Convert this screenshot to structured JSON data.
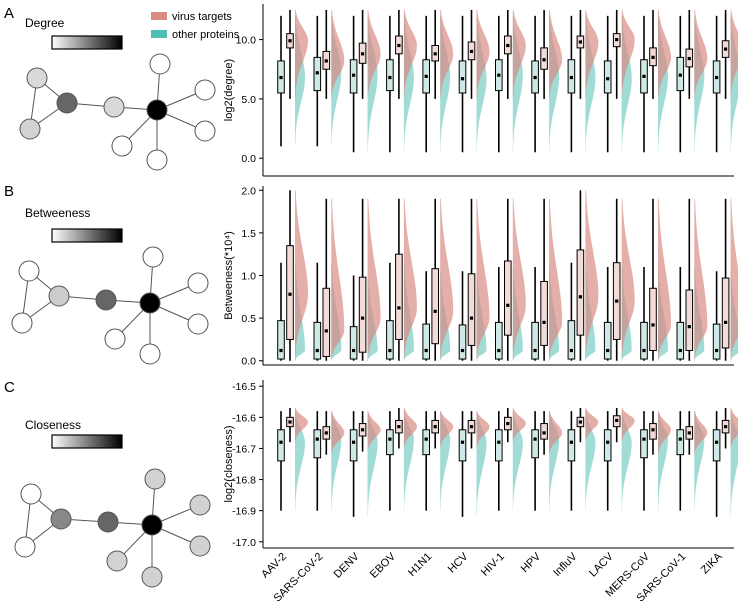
{
  "legend": {
    "items": [
      {
        "label": "virus targets",
        "color": "#d98b84"
      },
      {
        "label": "other proteins",
        "color": "#52bdb3"
      }
    ]
  },
  "panels": [
    {
      "letter": "A",
      "title": "Degree"
    },
    {
      "letter": "B",
      "title": "Betweeness"
    },
    {
      "letter": "C",
      "title": "Closeness"
    }
  ],
  "colors": {
    "virus": "#d98b84",
    "other": "#52bdb3",
    "box_virus": "#f3dcd8",
    "box_other": "#cfe9e6"
  },
  "chart_data": [
    {
      "type": "boxplot-violin",
      "title": "Degree",
      "ylabel": "log2(degree)",
      "ylim": [
        -1.5,
        13.0
      ],
      "yticks": [
        0.0,
        5.0,
        10.0
      ],
      "ytick_labels": [
        "0.0",
        "5.0",
        "10.0"
      ],
      "categories": [
        "AAV-2",
        "SARS-CoV-2",
        "DENV",
        "EBOV",
        "H1N1",
        "HCV",
        "HIV-1",
        "HPV",
        "InfluV",
        "LACV",
        "MERS-CoV",
        "SARS-CoV-1",
        "ZIKA"
      ],
      "series": [
        {
          "name": "other proteins",
          "stats": [
            {
              "min": 1.0,
              "q1": 5.5,
              "median": 6.8,
              "q3": 8.2,
              "max": 12.0
            },
            {
              "min": 1.0,
              "q1": 5.7,
              "median": 7.2,
              "q3": 8.5,
              "max": 12.0
            },
            {
              "min": 0.5,
              "q1": 5.5,
              "median": 7.0,
              "q3": 8.3,
              "max": 12.0
            },
            {
              "min": 0.5,
              "q1": 5.7,
              "median": 6.8,
              "q3": 8.3,
              "max": 12.0
            },
            {
              "min": 0.5,
              "q1": 5.5,
              "median": 6.9,
              "q3": 8.3,
              "max": 12.0
            },
            {
              "min": 0.5,
              "q1": 5.5,
              "median": 6.7,
              "q3": 8.2,
              "max": 12.0
            },
            {
              "min": 0.5,
              "q1": 5.7,
              "median": 7.0,
              "q3": 8.3,
              "max": 12.0
            },
            {
              "min": 0.5,
              "q1": 5.5,
              "median": 6.8,
              "q3": 8.2,
              "max": 12.0
            },
            {
              "min": 0.5,
              "q1": 5.5,
              "median": 6.8,
              "q3": 8.3,
              "max": 12.0
            },
            {
              "min": 0.5,
              "q1": 5.5,
              "median": 6.7,
              "q3": 8.2,
              "max": 12.0
            },
            {
              "min": 0.5,
              "q1": 5.5,
              "median": 6.9,
              "q3": 8.3,
              "max": 12.0
            },
            {
              "min": 0.5,
              "q1": 5.7,
              "median": 7.0,
              "q3": 8.5,
              "max": 12.0
            },
            {
              "min": 0.5,
              "q1": 5.5,
              "median": 6.8,
              "q3": 8.2,
              "max": 12.0
            }
          ]
        },
        {
          "name": "virus targets",
          "stats": [
            {
              "min": 5.0,
              "q1": 9.3,
              "median": 9.9,
              "q3": 10.5,
              "max": 12.5
            },
            {
              "min": 5.0,
              "q1": 7.5,
              "median": 8.2,
              "q3": 9.0,
              "max": 12.5
            },
            {
              "min": 5.0,
              "q1": 8.0,
              "median": 8.8,
              "q3": 9.7,
              "max": 12.5
            },
            {
              "min": 5.0,
              "q1": 8.8,
              "median": 9.5,
              "q3": 10.3,
              "max": 12.5
            },
            {
              "min": 5.0,
              "q1": 8.2,
              "median": 8.8,
              "q3": 9.5,
              "max": 12.5
            },
            {
              "min": 5.0,
              "q1": 8.3,
              "median": 9.0,
              "q3": 9.8,
              "max": 12.5
            },
            {
              "min": 5.0,
              "q1": 8.8,
              "median": 9.5,
              "q3": 10.3,
              "max": 12.5
            },
            {
              "min": 5.0,
              "q1": 7.5,
              "median": 8.3,
              "q3": 9.3,
              "max": 12.5
            },
            {
              "min": 5.0,
              "q1": 9.3,
              "median": 9.8,
              "q3": 10.3,
              "max": 12.5
            },
            {
              "min": 5.0,
              "q1": 9.4,
              "median": 10.0,
              "q3": 10.5,
              "max": 12.5
            },
            {
              "min": 5.0,
              "q1": 7.8,
              "median": 8.5,
              "q3": 9.3,
              "max": 12.5
            },
            {
              "min": 5.0,
              "q1": 7.7,
              "median": 8.4,
              "q3": 9.2,
              "max": 12.5
            },
            {
              "min": 5.0,
              "q1": 8.5,
              "median": 9.2,
              "q3": 9.9,
              "max": 12.5
            }
          ]
        }
      ]
    },
    {
      "type": "boxplot-violin",
      "title": "Betweeness",
      "ylabel": "Betweeness(*10⁴)",
      "ylim": [
        -0.05,
        2.05
      ],
      "yticks": [
        0.0,
        0.5,
        1.0,
        1.5,
        2.0
      ],
      "ytick_labels": [
        "0.0",
        "0.5",
        "1.0",
        "1.5",
        "2.0"
      ],
      "categories": [
        "AAV-2",
        "SARS-CoV-2",
        "DENV",
        "EBOV",
        "H1N1",
        "HCV",
        "HIV-1",
        "HPV",
        "InfluV",
        "LACV",
        "MERS-CoV",
        "SARS-CoV-1",
        "ZIKA"
      ],
      "series": [
        {
          "name": "other proteins",
          "stats": [
            {
              "min": 0.0,
              "q1": 0.02,
              "median": 0.12,
              "q3": 0.47,
              "max": 1.15
            },
            {
              "min": 0.0,
              "q1": 0.02,
              "median": 0.12,
              "q3": 0.45,
              "max": 1.15
            },
            {
              "min": 0.0,
              "q1": 0.02,
              "median": 0.12,
              "q3": 0.4,
              "max": 1.0
            },
            {
              "min": 0.0,
              "q1": 0.02,
              "median": 0.12,
              "q3": 0.47,
              "max": 1.15
            },
            {
              "min": 0.0,
              "q1": 0.02,
              "median": 0.12,
              "q3": 0.43,
              "max": 1.05
            },
            {
              "min": 0.0,
              "q1": 0.02,
              "median": 0.12,
              "q3": 0.42,
              "max": 1.05
            },
            {
              "min": 0.0,
              "q1": 0.02,
              "median": 0.12,
              "q3": 0.45,
              "max": 1.1
            },
            {
              "min": 0.0,
              "q1": 0.02,
              "median": 0.12,
              "q3": 0.45,
              "max": 1.1
            },
            {
              "min": 0.0,
              "q1": 0.02,
              "median": 0.12,
              "q3": 0.47,
              "max": 1.15
            },
            {
              "min": 0.0,
              "q1": 0.02,
              "median": 0.12,
              "q3": 0.45,
              "max": 1.1
            },
            {
              "min": 0.0,
              "q1": 0.02,
              "median": 0.12,
              "q3": 0.45,
              "max": 1.1
            },
            {
              "min": 0.0,
              "q1": 0.02,
              "median": 0.12,
              "q3": 0.45,
              "max": 1.1
            },
            {
              "min": 0.0,
              "q1": 0.02,
              "median": 0.12,
              "q3": 0.43,
              "max": 1.05
            }
          ]
        },
        {
          "name": "virus targets",
          "stats": [
            {
              "min": 0.0,
              "q1": 0.25,
              "median": 0.78,
              "q3": 1.35,
              "max": 2.0
            },
            {
              "min": 0.0,
              "q1": 0.05,
              "median": 0.35,
              "q3": 0.85,
              "max": 1.9
            },
            {
              "min": 0.0,
              "q1": 0.1,
              "median": 0.5,
              "q3": 0.98,
              "max": 1.9
            },
            {
              "min": 0.0,
              "q1": 0.25,
              "median": 0.62,
              "q3": 1.25,
              "max": 1.9
            },
            {
              "min": 0.0,
              "q1": 0.2,
              "median": 0.58,
              "q3": 1.08,
              "max": 1.9
            },
            {
              "min": 0.0,
              "q1": 0.18,
              "median": 0.5,
              "q3": 1.02,
              "max": 1.9
            },
            {
              "min": 0.0,
              "q1": 0.3,
              "median": 0.65,
              "q3": 1.17,
              "max": 1.9
            },
            {
              "min": 0.0,
              "q1": 0.18,
              "median": 0.45,
              "q3": 0.93,
              "max": 1.9
            },
            {
              "min": 0.0,
              "q1": 0.3,
              "median": 0.75,
              "q3": 1.3,
              "max": 2.0
            },
            {
              "min": 0.0,
              "q1": 0.25,
              "median": 0.7,
              "q3": 1.15,
              "max": 1.9
            },
            {
              "min": 0.0,
              "q1": 0.12,
              "median": 0.42,
              "q3": 0.85,
              "max": 1.9
            },
            {
              "min": 0.0,
              "q1": 0.12,
              "median": 0.4,
              "q3": 0.83,
              "max": 1.9
            },
            {
              "min": 0.0,
              "q1": 0.15,
              "median": 0.45,
              "q3": 0.97,
              "max": 1.9
            }
          ]
        }
      ]
    },
    {
      "type": "boxplot-violin",
      "title": "Closeness",
      "ylabel": "log2(closeness)",
      "ylim": [
        -17.02,
        -16.48
      ],
      "yticks": [
        -17.0,
        -16.9,
        -16.8,
        -16.7,
        -16.6,
        -16.5
      ],
      "ytick_labels": [
        "-17.0",
        "-16.9",
        "-16.8",
        "-16.7",
        "-16.6",
        "-16.5"
      ],
      "categories": [
        "AAV-2",
        "SARS-CoV-2",
        "DENV",
        "EBOV",
        "H1N1",
        "HCV",
        "HIV-1",
        "HPV",
        "InfluV",
        "LACV",
        "MERS-CoV",
        "SARS-CoV-1",
        "ZIKA"
      ],
      "series": [
        {
          "name": "other proteins",
          "stats": [
            {
              "min": -16.9,
              "q1": -16.74,
              "median": -16.68,
              "q3": -16.64,
              "max": -16.58
            },
            {
              "min": -16.9,
              "q1": -16.73,
              "median": -16.67,
              "q3": -16.64,
              "max": -16.58
            },
            {
              "min": -16.92,
              "q1": -16.74,
              "median": -16.68,
              "q3": -16.64,
              "max": -16.58
            },
            {
              "min": -16.9,
              "q1": -16.72,
              "median": -16.67,
              "q3": -16.64,
              "max": -16.58
            },
            {
              "min": -16.9,
              "q1": -16.72,
              "median": -16.67,
              "q3": -16.64,
              "max": -16.58
            },
            {
              "min": -16.92,
              "q1": -16.74,
              "median": -16.68,
              "q3": -16.64,
              "max": -16.58
            },
            {
              "min": -16.9,
              "q1": -16.74,
              "median": -16.68,
              "q3": -16.64,
              "max": -16.58
            },
            {
              "min": -16.9,
              "q1": -16.73,
              "median": -16.67,
              "q3": -16.64,
              "max": -16.58
            },
            {
              "min": -16.9,
              "q1": -16.74,
              "median": -16.68,
              "q3": -16.64,
              "max": -16.58
            },
            {
              "min": -16.9,
              "q1": -16.74,
              "median": -16.68,
              "q3": -16.64,
              "max": -16.58
            },
            {
              "min": -16.9,
              "q1": -16.73,
              "median": -16.67,
              "q3": -16.64,
              "max": -16.58
            },
            {
              "min": -16.9,
              "q1": -16.72,
              "median": -16.67,
              "q3": -16.64,
              "max": -16.58
            },
            {
              "min": -16.92,
              "q1": -16.74,
              "median": -16.68,
              "q3": -16.64,
              "max": -16.58
            }
          ]
        },
        {
          "name": "virus targets",
          "stats": [
            {
              "min": -16.68,
              "q1": -16.63,
              "median": -16.615,
              "q3": -16.6,
              "max": -16.57
            },
            {
              "min": -16.72,
              "q1": -16.67,
              "median": -16.65,
              "q3": -16.63,
              "max": -16.58
            },
            {
              "min": -16.71,
              "q1": -16.66,
              "median": -16.64,
              "q3": -16.62,
              "max": -16.58
            },
            {
              "min": -16.7,
              "q1": -16.65,
              "median": -16.63,
              "q3": -16.61,
              "max": -16.57
            },
            {
              "min": -16.7,
              "q1": -16.65,
              "median": -16.63,
              "q3": -16.61,
              "max": -16.58
            },
            {
              "min": -16.7,
              "q1": -16.65,
              "median": -16.63,
              "q3": -16.61,
              "max": -16.58
            },
            {
              "min": -16.68,
              "q1": -16.64,
              "median": -16.62,
              "q3": -16.6,
              "max": -16.57
            },
            {
              "min": -16.72,
              "q1": -16.67,
              "median": -16.65,
              "q3": -16.62,
              "max": -16.58
            },
            {
              "min": -16.68,
              "q1": -16.63,
              "median": -16.615,
              "q3": -16.6,
              "max": -16.57
            },
            {
              "min": -16.68,
              "q1": -16.63,
              "median": -16.61,
              "q3": -16.595,
              "max": -16.57
            },
            {
              "min": -16.72,
              "q1": -16.67,
              "median": -16.64,
              "q3": -16.62,
              "max": -16.58
            },
            {
              "min": -16.72,
              "q1": -16.67,
              "median": -16.65,
              "q3": -16.63,
              "max": -16.58
            },
            {
              "min": -16.7,
              "q1": -16.65,
              "median": -16.63,
              "q3": -16.61,
              "max": -16.57
            }
          ]
        }
      ]
    }
  ]
}
